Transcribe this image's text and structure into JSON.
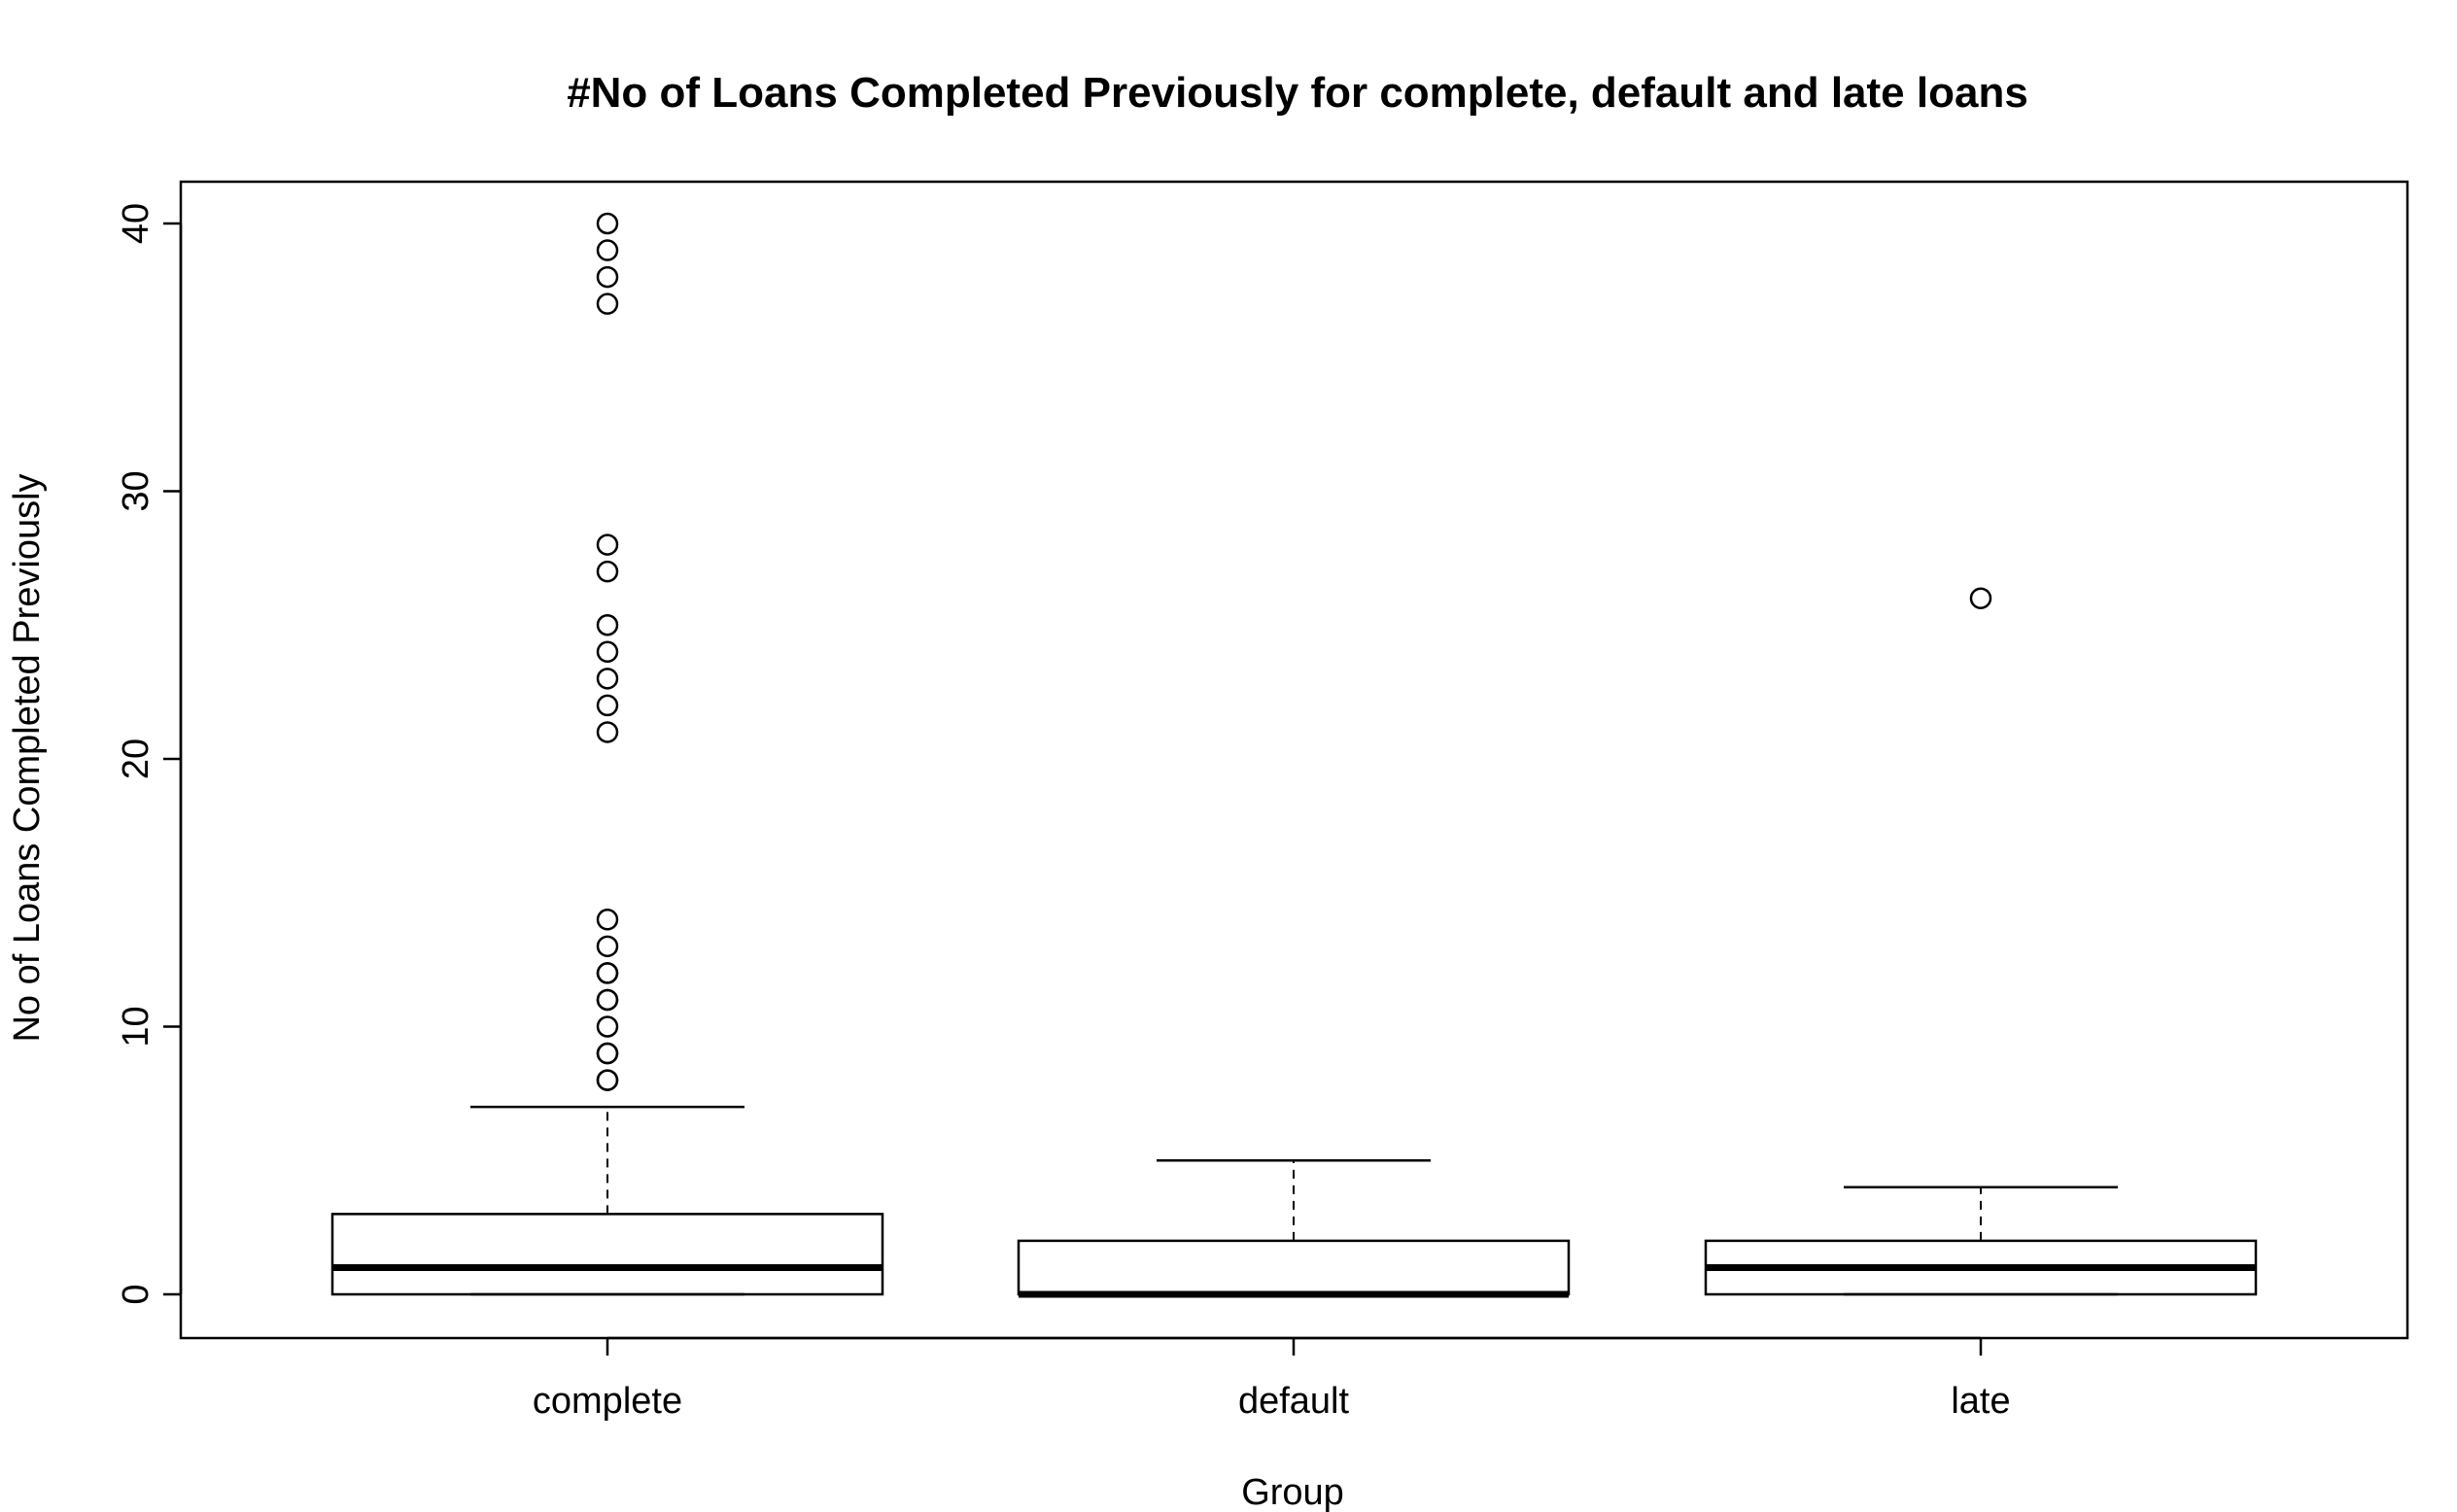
{
  "chart_data": {
    "type": "boxplot",
    "title": "#No of Loans Completed Previously for complete, default and late loans",
    "xlabel": "Group",
    "ylabel": "No of Loans Completed Previously",
    "ylim": [
      -1.6,
      41.6
    ],
    "y_ticks": [
      0,
      10,
      20,
      30,
      40
    ],
    "y_tick_labels": [
      "0",
      "10",
      "20",
      "30",
      "40"
    ],
    "categories": [
      "complete",
      "default",
      "late"
    ],
    "boxes": [
      {
        "group": "complete",
        "whisker_low": 0,
        "q1": 0,
        "median": 1,
        "q3": 3,
        "whisker_high": 7,
        "outliers": [
          8,
          8,
          9,
          9,
          10,
          11,
          11,
          12,
          12,
          13,
          14,
          21,
          22,
          23,
          24,
          25,
          27,
          28,
          37,
          38,
          39,
          40
        ]
      },
      {
        "group": "default",
        "whisker_low": 0,
        "q1": 0,
        "median": 0,
        "q3": 2,
        "whisker_high": 5,
        "outliers": []
      },
      {
        "group": "late",
        "whisker_low": 0,
        "q1": 0,
        "median": 1,
        "q3": 2,
        "whisker_high": 4,
        "outliers": [
          26
        ]
      }
    ],
    "grid": false,
    "legend": "none"
  }
}
